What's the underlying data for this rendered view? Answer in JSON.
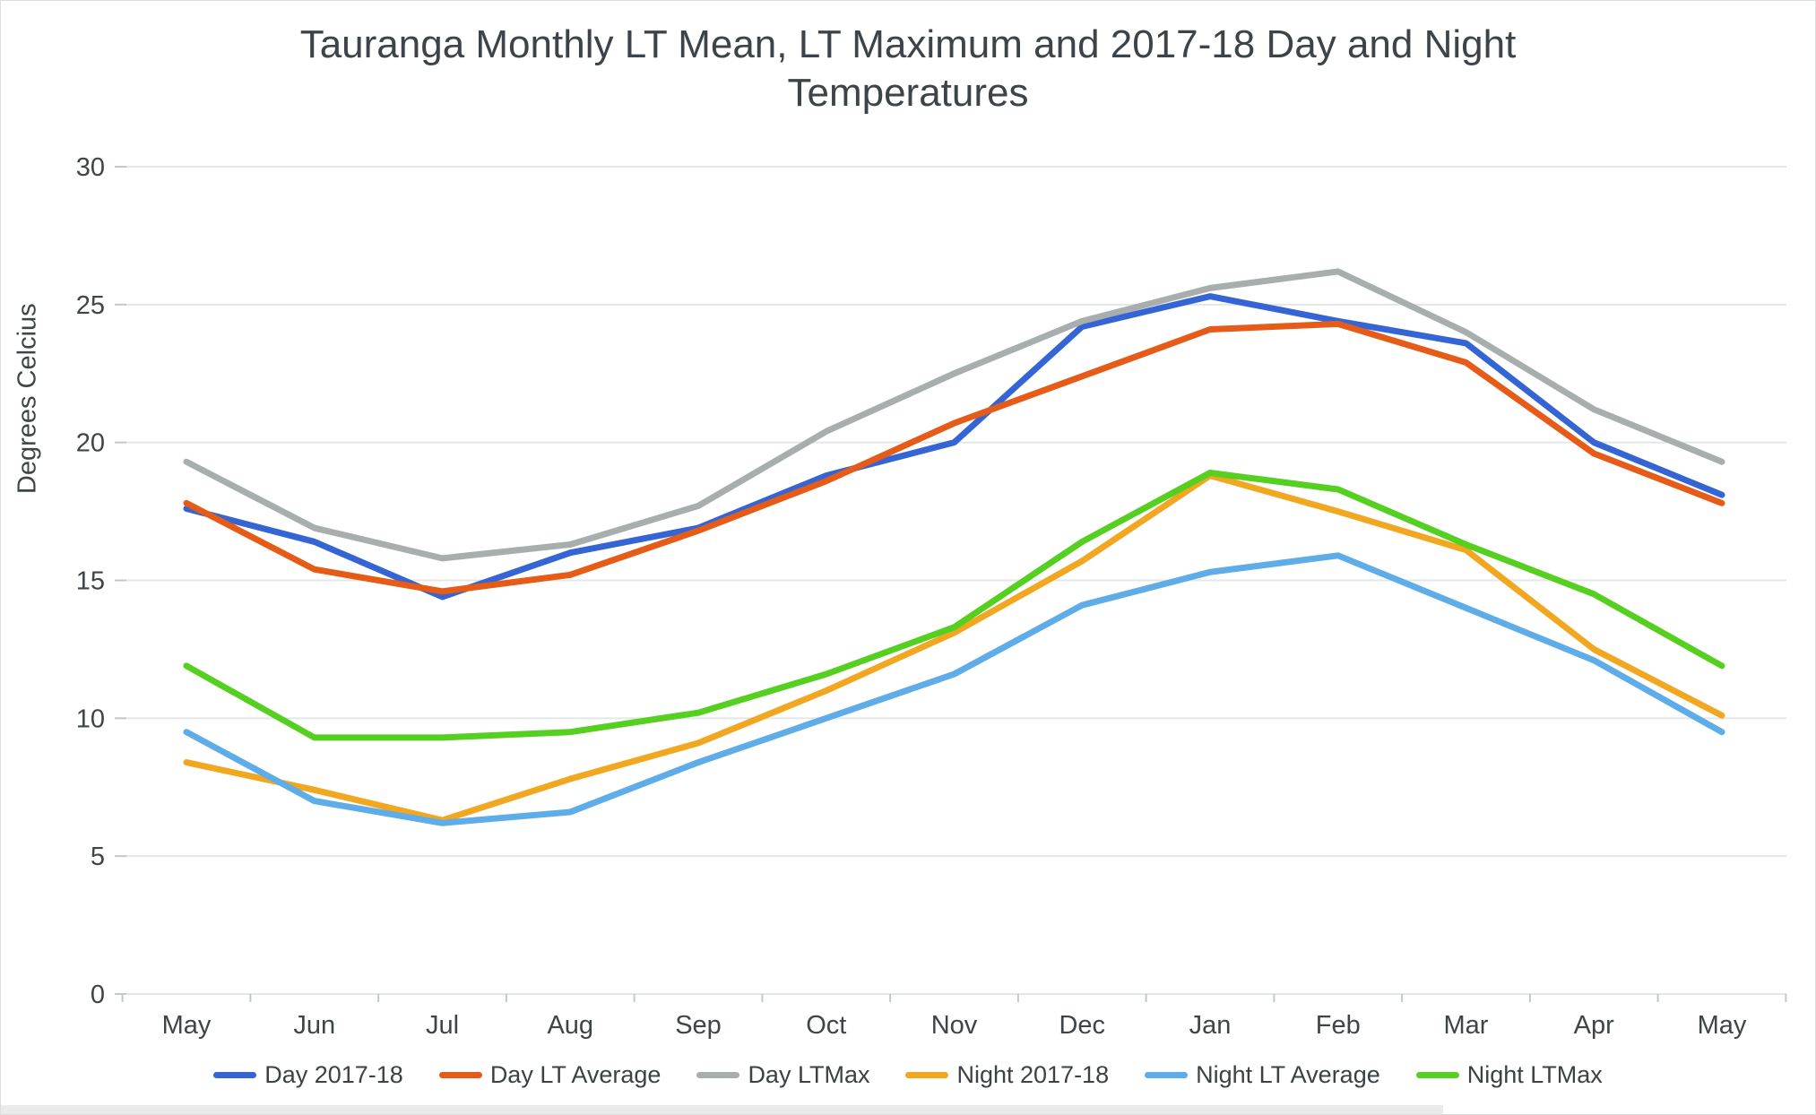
{
  "title": {
    "line1": "Tauranga Monthly LT Mean, LT Maximum and 2017-18 Day and Night",
    "line2": "Temperatures"
  },
  "chart_data": {
    "type": "line",
    "title": "Tauranga Monthly LT Mean, LT Maximum and 2017-18 Day and Night Temperatures",
    "xlabel": "",
    "ylabel": "Degrees Celcius",
    "categories": [
      "May",
      "Jun",
      "Jul",
      "Aug",
      "Sep",
      "Oct",
      "Nov",
      "Dec",
      "Jan",
      "Feb",
      "Mar",
      "Apr",
      "May"
    ],
    "ylim": [
      0,
      30
    ],
    "yticks": [
      0,
      5,
      10,
      15,
      20,
      25,
      30
    ],
    "grid": true,
    "legend_position": "bottom",
    "series": [
      {
        "name": "Day 2017-18",
        "color": "#3565d4",
        "values": [
          17.6,
          16.4,
          14.4,
          16.0,
          16.9,
          18.8,
          20.0,
          24.2,
          25.3,
          24.4,
          23.6,
          20.0,
          18.1
        ]
      },
      {
        "name": "Day  LT Average",
        "color": "#e55b17",
        "values": [
          17.8,
          15.4,
          14.6,
          15.2,
          16.8,
          18.6,
          20.7,
          22.4,
          24.1,
          24.3,
          22.9,
          19.6,
          17.8
        ]
      },
      {
        "name": "Day LTMax",
        "color": "#a8aeae",
        "values": [
          19.3,
          16.9,
          15.8,
          16.3,
          17.7,
          20.4,
          22.5,
          24.4,
          25.6,
          26.2,
          24.0,
          21.2,
          19.3
        ]
      },
      {
        "name": "Night 2017-18",
        "color": "#f1a71f",
        "values": [
          8.4,
          7.4,
          6.3,
          7.8,
          9.1,
          11.0,
          13.1,
          15.7,
          18.8,
          17.5,
          16.1,
          12.5,
          10.1
        ]
      },
      {
        "name": "Night LT Average",
        "color": "#5eace8",
        "values": [
          9.5,
          7.0,
          6.2,
          6.6,
          8.4,
          10.0,
          11.6,
          14.1,
          15.3,
          15.9,
          14.0,
          12.1,
          9.5
        ]
      },
      {
        "name": "Night LTMax",
        "color": "#55d021",
        "values": [
          11.9,
          9.3,
          9.3,
          9.5,
          10.2,
          11.6,
          13.3,
          16.4,
          18.9,
          18.3,
          16.3,
          14.5,
          11.9
        ]
      }
    ],
    "gridline_color": "#e4e7e7",
    "tick_color": "#c3c8c9",
    "text_color": "#3f4446"
  }
}
